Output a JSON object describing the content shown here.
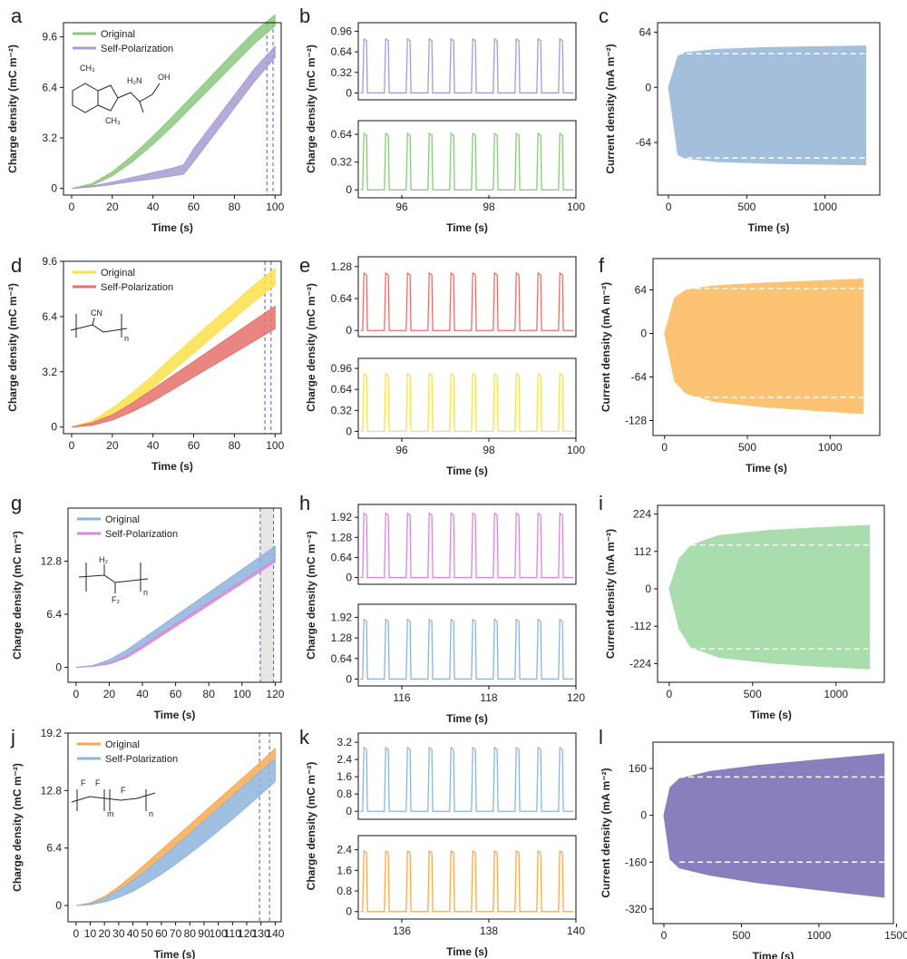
{
  "colors": {
    "original_green": "#8cc87e",
    "selfpol_purple": "#a89bd4",
    "original_yellow": "#fbe14a",
    "selfpol_red": "#e6716b",
    "original_blue": "#8fb3dc",
    "selfpol_pink": "#d68ad7",
    "original_orange": "#f6aa52",
    "selfpol_lightblue": "#8fb5dd",
    "current_blue": "#a4bfdc",
    "current_orange": "#fbc373",
    "current_green": "#a9ddad",
    "current_purple": "#8a7fbd",
    "dashed_marker": "#5a5cc8"
  },
  "chart_data": [
    {
      "panel": "a",
      "type": "area",
      "xlabel": "Time (s)",
      "ylabel": "Charge density (mC m⁻²)",
      "xlim": [
        0,
        100
      ],
      "ylim": [
        0,
        10.5
      ],
      "xticks": [
        "0",
        "20",
        "40",
        "60",
        "80",
        "100"
      ],
      "yticks": [
        "0",
        "3.2",
        "6.4",
        "9.6"
      ],
      "xtick_values": [
        0,
        20,
        40,
        60,
        80,
        100
      ],
      "ytick_values": [
        0,
        3.2,
        6.4,
        9.6
      ],
      "legend": [
        "Original",
        "Self-Polarization"
      ],
      "inset": "caffeine-amino-acid",
      "marked_range": [
        96,
        99
      ],
      "series": [
        {
          "name": "Original",
          "color": "#8cc87e",
          "x": [
            0,
            10,
            20,
            30,
            40,
            50,
            60,
            70,
            80,
            90,
            100
          ],
          "lower": [
            0,
            0.2,
            0.8,
            1.7,
            2.8,
            4.0,
            5.3,
            6.6,
            7.9,
            9.2,
            10.3
          ],
          "upper": [
            0,
            0.3,
            1.05,
            2.1,
            3.3,
            4.6,
            5.95,
            7.3,
            8.65,
            9.95,
            11.0
          ]
        },
        {
          "name": "Self-Polarization",
          "color": "#a89bd4",
          "x": [
            0,
            10,
            20,
            30,
            40,
            50,
            55,
            60,
            70,
            80,
            90,
            100
          ],
          "lower": [
            0,
            0.1,
            0.25,
            0.45,
            0.6,
            0.8,
            0.9,
            1.7,
            3.4,
            5.1,
            6.8,
            8.3
          ],
          "upper": [
            0,
            0.15,
            0.4,
            0.7,
            1.0,
            1.3,
            1.5,
            2.5,
            4.2,
            5.9,
            7.6,
            9.0
          ]
        }
      ]
    },
    {
      "panel": "b",
      "type": "line",
      "xlabel": "Time (s)",
      "ylabel": "Charge density (mC m⁻²)",
      "xlim": [
        95,
        100
      ],
      "xticks": [
        "96",
        "98",
        "100"
      ],
      "xtick_values": [
        96,
        98,
        100
      ],
      "subplots": [
        {
          "name": "Self-Polarization",
          "color": "#a89bd4",
          "ylim": [
            -0.05,
            0.96
          ],
          "yticks": [
            "0",
            "0.32",
            "0.64",
            "0.96"
          ],
          "ytick_values": [
            0,
            0.32,
            0.64,
            0.96
          ],
          "baseline": 0.0,
          "peak": 0.84,
          "period": 0.5,
          "start": 95.1
        },
        {
          "name": "Original",
          "color": "#8cc87e",
          "ylim": [
            -0.05,
            0.7
          ],
          "yticks": [
            "0",
            "0.32",
            "0.64"
          ],
          "ytick_values": [
            0,
            0.32,
            0.64
          ],
          "baseline": 0.0,
          "peak": 0.65,
          "period": 0.5,
          "start": 95.1
        }
      ]
    },
    {
      "panel": "c",
      "type": "area",
      "xlabel": "Time (s)",
      "ylabel": "Current density (mA m⁻²)",
      "xlim": [
        -70,
        1350
      ],
      "ylim": [
        -125,
        75
      ],
      "xticks": [
        "0",
        "500",
        "1000"
      ],
      "xtick_values": [
        0,
        500,
        1000
      ],
      "yticks": [
        "64",
        "0",
        "-64"
      ],
      "ytick_values": [
        64,
        0,
        -64
      ],
      "color": "#a4bfdc",
      "x": [
        0,
        60,
        100,
        300,
        600,
        900,
        1260
      ],
      "upper": [
        0,
        36,
        40,
        44,
        46,
        47,
        48
      ],
      "lower": [
        0,
        -78,
        -82,
        -86,
        -88,
        -89,
        -90
      ],
      "dashed_levels": [
        39,
        -82
      ],
      "dashed_x_start": 60
    },
    {
      "panel": "d",
      "type": "area",
      "xlabel": "Time (s)",
      "ylabel": "Charge density (mC m⁻²)",
      "xlim": [
        0,
        100
      ],
      "ylim": [
        0,
        9.6
      ],
      "xticks": [
        "0",
        "20",
        "40",
        "60",
        "80",
        "100"
      ],
      "yticks": [
        "0",
        "3.2",
        "6.4",
        "9.6"
      ],
      "xtick_values": [
        0,
        20,
        40,
        60,
        80,
        100
      ],
      "ytick_values": [
        0,
        3.2,
        6.4,
        9.6
      ],
      "legend": [
        "Original",
        "Self-Polarization"
      ],
      "inset": "polyacrylonitrile",
      "marked_range": [
        95,
        98
      ],
      "series": [
        {
          "name": "Original",
          "color": "#fbe14a",
          "x": [
            0,
            10,
            20,
            30,
            40,
            50,
            60,
            70,
            80,
            90,
            100
          ],
          "lower": [
            0,
            0.2,
            0.7,
            1.4,
            2.3,
            3.3,
            4.3,
            5.3,
            6.3,
            7.3,
            8.2
          ],
          "upper": [
            0,
            0.35,
            1.1,
            2.0,
            3.0,
            4.1,
            5.15,
            6.2,
            7.2,
            8.25,
            9.2
          ]
        },
        {
          "name": "Self-Polarization",
          "color": "#e6716b",
          "x": [
            0,
            10,
            20,
            30,
            40,
            50,
            60,
            70,
            80,
            90,
            100
          ],
          "lower": [
            0,
            0.1,
            0.4,
            0.9,
            1.5,
            2.2,
            2.9,
            3.6,
            4.3,
            5.0,
            5.7
          ],
          "upper": [
            0,
            0.25,
            0.7,
            1.4,
            2.2,
            3.0,
            3.8,
            4.6,
            5.4,
            6.2,
            7.0
          ]
        }
      ]
    },
    {
      "panel": "e",
      "type": "line",
      "xlabel": "Time (s)",
      "ylabel": "Charge density (mC m⁻²)",
      "xlim": [
        95,
        100
      ],
      "xticks": [
        "96",
        "98",
        "100"
      ],
      "xtick_values": [
        96,
        98,
        100
      ],
      "subplots": [
        {
          "name": "Self-Polarization",
          "color": "#e6716b",
          "ylim": [
            -0.05,
            1.3
          ],
          "yticks": [
            "0",
            "0.64",
            "1.28"
          ],
          "ytick_values": [
            0,
            0.64,
            1.28
          ],
          "baseline": 0.0,
          "peak": 1.15,
          "period": 0.5,
          "start": 95.1
        },
        {
          "name": "Original",
          "color": "#fbe14a",
          "ylim": [
            -0.05,
            0.98
          ],
          "yticks": [
            "0",
            "0.32",
            "0.64",
            "0.96"
          ],
          "ytick_values": [
            0,
            0.32,
            0.64,
            0.96
          ],
          "baseline": 0.0,
          "peak": 0.88,
          "period": 0.5,
          "start": 95.1
        }
      ]
    },
    {
      "panel": "f",
      "type": "area",
      "xlabel": "Time (s)",
      "ylabel": "Current density (mA m⁻²)",
      "xlim": [
        -70,
        1300
      ],
      "ylim": [
        -150,
        110
      ],
      "xticks": [
        "0",
        "500",
        "1000"
      ],
      "xtick_values": [
        0,
        500,
        1000
      ],
      "yticks": [
        "64",
        "0",
        "-64",
        "-128"
      ],
      "ytick_values": [
        64,
        0,
        -64,
        -128
      ],
      "color": "#fbc373",
      "x": [
        0,
        60,
        130,
        300,
        600,
        900,
        1200
      ],
      "upper": [
        0,
        52,
        64,
        70,
        74,
        77,
        80
      ],
      "lower": [
        0,
        -70,
        -88,
        -100,
        -108,
        -113,
        -118
      ],
      "dashed_levels": [
        66,
        -94
      ],
      "dashed_x_start": 130
    },
    {
      "panel": "g",
      "type": "area",
      "xlabel": "Time (s)",
      "ylabel": "Charge density (mC m⁻²)",
      "xlim": [
        0,
        120
      ],
      "ylim": [
        -1,
        19.2
      ],
      "xticks": [
        "0",
        "20",
        "40",
        "60",
        "80",
        "100",
        "120"
      ],
      "yticks": [
        "0",
        "6.4",
        "12.8"
      ],
      "xtick_values": [
        0,
        20,
        40,
        60,
        80,
        100,
        120
      ],
      "ytick_values": [
        0,
        6.4,
        12.8
      ],
      "legend": [
        "Original",
        "Self-Polarization"
      ],
      "inset": "pvdf",
      "marked_range": [
        111,
        119
      ],
      "series": [
        {
          "name": "Original",
          "color": "#8fb3dc",
          "x": [
            0,
            10,
            20,
            30,
            40,
            50,
            60,
            70,
            80,
            90,
            100,
            110,
            120
          ],
          "lower": [
            0,
            0.1,
            0.5,
            1.3,
            2.6,
            3.9,
            5.2,
            6.5,
            7.8,
            9.1,
            10.4,
            11.7,
            13.0
          ],
          "upper": [
            0,
            0.2,
            0.9,
            2.0,
            3.4,
            4.8,
            6.2,
            7.6,
            9.0,
            10.4,
            11.8,
            13.2,
            14.6
          ]
        },
        {
          "name": "Self-Polarization",
          "color": "#d68ad7",
          "x": [
            0,
            10,
            20,
            30,
            40,
            50,
            60,
            70,
            80,
            90,
            100,
            110,
            120
          ],
          "lower": [
            0,
            0.1,
            0.4,
            1.1,
            2.3,
            3.6,
            4.9,
            6.2,
            7.5,
            8.8,
            10.1,
            11.4,
            12.7
          ],
          "upper": [
            0,
            0.1,
            0.5,
            1.3,
            2.6,
            3.9,
            5.2,
            6.5,
            7.8,
            9.1,
            10.4,
            11.7,
            13.0
          ]
        }
      ]
    },
    {
      "panel": "h",
      "type": "line",
      "xlabel": "Time (s)",
      "ylabel": "Charge density (mC m⁻²)",
      "xlim": [
        115,
        120
      ],
      "xticks": [
        "116",
        "118",
        "120"
      ],
      "xtick_values": [
        116,
        118,
        120
      ],
      "subplots": [
        {
          "name": "Self-Polarization",
          "color": "#d68ad7",
          "ylim": [
            -0.1,
            2.05
          ],
          "yticks": [
            "0",
            "0.64",
            "1.28",
            "1.92"
          ],
          "ytick_values": [
            0,
            0.64,
            1.28,
            1.92
          ],
          "baseline": 0.0,
          "peak": 2.05,
          "period": 0.5,
          "start": 115.1
        },
        {
          "name": "Original",
          "color": "#8fb3dc",
          "ylim": [
            -0.1,
            2.05
          ],
          "yticks": [
            "0",
            "0.64",
            "1.28",
            "1.92"
          ],
          "ytick_values": [
            0,
            0.64,
            1.28,
            1.92
          ],
          "baseline": 0.0,
          "peak": 1.85,
          "period": 0.5,
          "start": 115.1
        }
      ]
    },
    {
      "panel": "i",
      "type": "area",
      "xlabel": "Time (s)",
      "ylabel": "Current density (mA m⁻²)",
      "xlim": [
        -70,
        1290
      ],
      "ylim": [
        -280,
        250
      ],
      "xticks": [
        "0",
        "500",
        "1000"
      ],
      "xtick_values": [
        0,
        500,
        1000
      ],
      "yticks": [
        "224",
        "112",
        "0",
        "-112",
        "-224"
      ],
      "ytick_values": [
        224,
        112,
        0,
        -112,
        -224
      ],
      "color": "#a9ddad",
      "x": [
        0,
        60,
        130,
        300,
        600,
        900,
        1200
      ],
      "upper": [
        0,
        90,
        130,
        160,
        175,
        183,
        190
      ],
      "lower": [
        0,
        -120,
        -175,
        -205,
        -222,
        -232,
        -240
      ],
      "dashed_levels": [
        131,
        -180
      ],
      "dashed_x_start": 130
    },
    {
      "panel": "j",
      "type": "area",
      "xlabel": "Time (s)",
      "ylabel": "Charge density (mC m⁻²)",
      "xlim": [
        0,
        140
      ],
      "ylim": [
        -1,
        19.2
      ],
      "xticks": [
        "0",
        "10",
        "20",
        "30",
        "40",
        "50",
        "60",
        "70",
        "80",
        "90",
        "100",
        "110",
        "120",
        "130",
        "140"
      ],
      "xtick_values": [
        0,
        10,
        20,
        30,
        40,
        50,
        60,
        70,
        80,
        90,
        100,
        110,
        120,
        130,
        140
      ],
      "yticks": [
        "0",
        "6.4",
        "12.8",
        "19.2"
      ],
      "ytick_values": [
        0,
        6.4,
        12.8,
        19.2
      ],
      "legend": [
        "Original",
        "Self-Polarization"
      ],
      "inset": "copolymer",
      "marked_range": [
        129,
        136
      ],
      "series": [
        {
          "name": "Original",
          "color": "#f6aa52",
          "x": [
            0,
            10,
            20,
            30,
            40,
            50,
            60,
            70,
            80,
            90,
            100,
            110,
            120,
            130,
            140
          ],
          "lower": [
            0,
            0.2,
            0.8,
            1.7,
            2.8,
            4.0,
            5.3,
            6.6,
            8.0,
            9.4,
            10.8,
            12.2,
            13.6,
            15.0,
            16.3
          ],
          "upper": [
            0,
            0.3,
            1.0,
            2.1,
            3.4,
            4.8,
            6.2,
            7.6,
            9.0,
            10.4,
            11.8,
            13.2,
            14.6,
            16.0,
            17.5
          ]
        },
        {
          "name": "Self-Polarization",
          "color": "#8fb5dd",
          "x": [
            0,
            10,
            20,
            30,
            40,
            50,
            60,
            70,
            80,
            90,
            100,
            110,
            120,
            130,
            140
          ],
          "lower": [
            0,
            0.1,
            0.4,
            0.9,
            1.6,
            2.5,
            3.5,
            4.6,
            5.8,
            7.0,
            8.3,
            9.6,
            11.0,
            12.4,
            13.8
          ],
          "upper": [
            0,
            0.2,
            0.8,
            1.7,
            2.8,
            4.0,
            5.3,
            6.6,
            8.0,
            9.4,
            10.8,
            12.2,
            13.6,
            15.0,
            16.3
          ]
        }
      ]
    },
    {
      "panel": "k",
      "type": "line",
      "xlabel": "Time (s)",
      "ylabel": "Charge density (mC m⁻²)",
      "xlim": [
        135,
        140
      ],
      "xticks": [
        "136",
        "138",
        "140"
      ],
      "xtick_values": [
        136,
        138,
        140
      ],
      "subplots": [
        {
          "name": "Self-Polarization",
          "color": "#8fb5dd",
          "ylim": [
            -0.2,
            3.2
          ],
          "yticks": [
            "0",
            "0.8",
            "1.6",
            "2.4",
            "3.2"
          ],
          "ytick_values": [
            0,
            0.8,
            1.6,
            2.4,
            3.2
          ],
          "baseline": 0.0,
          "peak": 2.95,
          "period": 0.5,
          "start": 135.1
        },
        {
          "name": "Original",
          "color": "#f6aa52",
          "ylim": [
            -0.15,
            2.6
          ],
          "yticks": [
            "0",
            "0.8",
            "1.6",
            "2.4"
          ],
          "ytick_values": [
            0,
            0.8,
            1.6,
            2.4
          ],
          "baseline": 0.0,
          "peak": 2.35,
          "period": 0.5,
          "start": 135.1
        }
      ]
    },
    {
      "panel": "l",
      "type": "area",
      "xlabel": "Time (s)",
      "ylabel": "Current density (mA m⁻²)",
      "xlim": [
        -70,
        1480
      ],
      "ylim": [
        -370,
        250
      ],
      "xticks": [
        "0",
        "500",
        "1000",
        "1500"
      ],
      "xtick_values": [
        0,
        500,
        1000,
        1500
      ],
      "yticks": [
        "160",
        "0",
        "-160",
        "-320"
      ],
      "ytick_values": [
        160,
        0,
        -160,
        -320
      ],
      "color": "#8a7fbd",
      "x": [
        0,
        40,
        100,
        300,
        600,
        1000,
        1420
      ],
      "upper": [
        0,
        95,
        125,
        150,
        170,
        190,
        210
      ],
      "lower": [
        0,
        -150,
        -180,
        -205,
        -230,
        -255,
        -280
      ],
      "dashed_levels": [
        131,
        -160
      ],
      "dashed_x_start": 100
    }
  ]
}
